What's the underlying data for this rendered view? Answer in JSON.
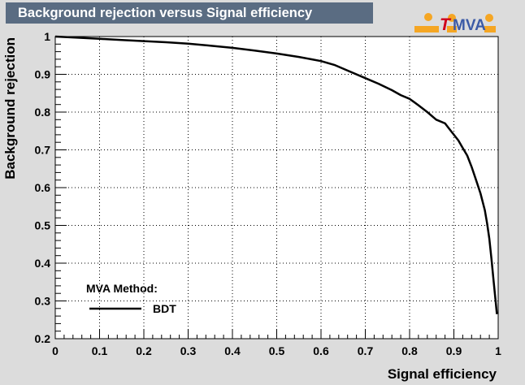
{
  "logo": {
    "text_t": "T",
    "text_mva": "MVA",
    "icon": "tmva-logo-icon",
    "orange": "#f5a623",
    "red": "#d0021b",
    "blue": "#3b5aa6"
  },
  "chart_data": {
    "type": "line",
    "title": "Background rejection versus Signal efficiency",
    "xlabel": "Signal efficiency",
    "ylabel": "Background rejection",
    "xlim": [
      0,
      1
    ],
    "ylim": [
      0.2,
      1
    ],
    "x_ticks": [
      "0",
      "0.1",
      "0.2",
      "0.3",
      "0.4",
      "0.5",
      "0.6",
      "0.7",
      "0.8",
      "0.9",
      "1"
    ],
    "y_ticks": [
      "0.2",
      "0.3",
      "0.4",
      "0.5",
      "0.6",
      "0.7",
      "0.8",
      "0.9",
      "1"
    ],
    "grid": true,
    "legend": {
      "header": "MVA Method:",
      "placement": "bottom-left"
    },
    "series": [
      {
        "name": "BDT",
        "color": "#000000",
        "x": [
          0,
          0.05,
          0.1,
          0.15,
          0.2,
          0.25,
          0.3,
          0.35,
          0.4,
          0.45,
          0.5,
          0.55,
          0.6,
          0.63,
          0.66,
          0.7,
          0.73,
          0.76,
          0.78,
          0.8,
          0.82,
          0.84,
          0.86,
          0.88,
          0.89,
          0.9,
          0.91,
          0.92,
          0.93,
          0.94,
          0.95,
          0.96,
          0.97,
          0.975,
          0.98,
          0.985,
          0.99,
          0.995,
          0.997
        ],
        "y": [
          1.0,
          0.997,
          0.994,
          0.991,
          0.988,
          0.985,
          0.981,
          0.976,
          0.97,
          0.963,
          0.955,
          0.946,
          0.935,
          0.925,
          0.91,
          0.89,
          0.875,
          0.858,
          0.845,
          0.835,
          0.818,
          0.8,
          0.78,
          0.77,
          0.755,
          0.74,
          0.725,
          0.705,
          0.685,
          0.655,
          0.62,
          0.585,
          0.54,
          0.505,
          0.465,
          0.41,
          0.35,
          0.29,
          0.265
        ]
      }
    ]
  }
}
